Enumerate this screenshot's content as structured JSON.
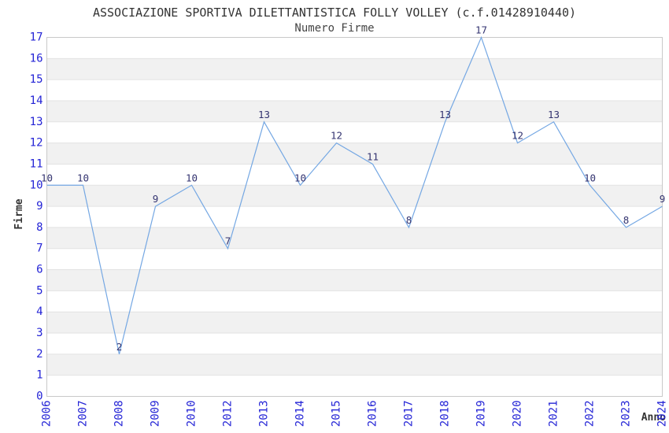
{
  "chart_data": {
    "type": "line",
    "title": "ASSOCIAZIONE SPORTIVA DILETTANTISTICA FOLLY VOLLEY (c.f.01428910440)",
    "subtitle": "Numero Firme",
    "xlabel": "Anno",
    "ylabel": "Firme",
    "categories": [
      "2006",
      "2007",
      "2008",
      "2009",
      "2010",
      "2012",
      "2013",
      "2014",
      "2015",
      "2016",
      "2017",
      "2018",
      "2019",
      "2020",
      "2021",
      "2022",
      "2023",
      "2024"
    ],
    "values": [
      10,
      10,
      2,
      9,
      10,
      7,
      13,
      10,
      12,
      11,
      8,
      13,
      17,
      12,
      13,
      10,
      8,
      9
    ],
    "ylim": [
      0,
      17
    ],
    "y_tick_step": 1,
    "grid": "horizontal-every-integer",
    "plot_bands": "alternating-white-gray",
    "legend": "none",
    "data_labels": "above-points",
    "colors": {
      "line": "#74a7e3",
      "tick_label": "#2424d6",
      "data_label": "#333370",
      "band": "#f1f1f1",
      "gridline": "#e2e2e2",
      "border": "#c9c9c9",
      "title": "#333333",
      "subtitle": "#454545",
      "axis_title": "#333333",
      "background": "#ffffff"
    }
  }
}
